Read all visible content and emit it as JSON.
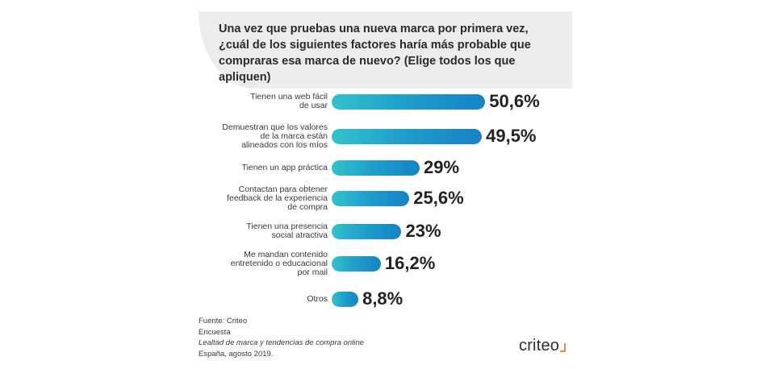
{
  "title_lines": [
    "Una vez que pruebas una nueva marca por primera vez,",
    "¿cuál de los siguientes factores haría más probable que",
    "compraras esa marca de nuevo? (Elige todos los que apliquen)"
  ],
  "chart_data": {
    "type": "bar",
    "orientation": "horizontal",
    "categories": [
      "Tienen una web fácil\nde usar",
      "Demuestran que los valores\nde la marca están\nalineados con los míos",
      "Tienen un app práctica",
      "Contactan para obtener\nfeedback de la experiencia\nde compra",
      "Tienen una presencia\nsocial atractiva",
      "Me mandan contenido\nentretenido o educacional\npor mail",
      "Otros"
    ],
    "values": [
      50.6,
      49.5,
      29,
      25.6,
      23,
      16.2,
      8.8
    ],
    "value_labels": [
      "50,6%",
      "49,5%",
      "29%",
      "25,6%",
      "23%",
      "16,2%",
      "8,8%"
    ],
    "grid": false,
    "bar_color": "#1a8fc8",
    "bar_color_start": "#32c3cc"
  },
  "footer": {
    "source": "Fuente: Criteo",
    "type": "Encuesta",
    "study": "Lealtad de marca y tendencias de compra online",
    "place_date": "España, agosto 2019."
  },
  "logo": {
    "text": "criteo",
    "accent_color": "#f08a2c"
  }
}
